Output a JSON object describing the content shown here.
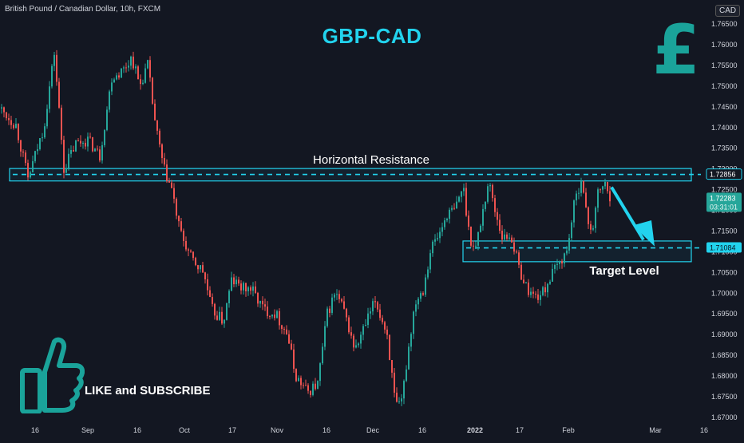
{
  "symbol_title": "British Pound / Canadian Dollar, 10h, FXCM",
  "main_title": "GBP-CAD",
  "currency_badge": "CAD",
  "logo_symbol": "£",
  "subscribe_text": "LIKE and SUBSCRIBE",
  "colors": {
    "background": "#131722",
    "up": "#26a69a",
    "down": "#ef5350",
    "zone": "#22d3ee",
    "title": "#22d3ee",
    "logo": "#1aa39a",
    "price_tag": "#26a69a"
  },
  "chart_data": {
    "type": "candlestick",
    "title": "GBP-CAD",
    "x_tick_labels": [
      "16",
      "Sep",
      "16",
      "Oct",
      "17",
      "Nov",
      "16",
      "Dec",
      "16",
      "2022",
      "17",
      "Feb",
      "Mar",
      "16"
    ],
    "y_tick_labels": [
      "1.67000",
      "1.67500",
      "1.68000",
      "1.68500",
      "1.69000",
      "1.69500",
      "1.70000",
      "1.70500",
      "1.71000",
      "1.71500",
      "1.72000",
      "1.72500",
      "1.73000",
      "1.73500",
      "1.74000",
      "1.74500",
      "1.75000",
      "1.75500",
      "1.76000",
      "1.76500"
    ],
    "ylim": [
      1.6695,
      1.768
    ],
    "grid": false,
    "price_path": [
      [
        0,
        1.7445
      ],
      [
        20,
        1.7405
      ],
      [
        35,
        1.7275
      ],
      [
        55,
        1.74
      ],
      [
        68,
        1.758
      ],
      [
        80,
        1.73
      ],
      [
        95,
        1.736
      ],
      [
        110,
        1.737
      ],
      [
        125,
        1.733
      ],
      [
        140,
        1.752
      ],
      [
        155,
        1.754
      ],
      [
        165,
        1.757
      ],
      [
        175,
        1.75
      ],
      [
        185,
        1.755
      ],
      [
        195,
        1.74
      ],
      [
        205,
        1.73
      ],
      [
        215,
        1.725
      ],
      [
        225,
        1.715
      ],
      [
        240,
        1.708
      ],
      [
        255,
        1.705
      ],
      [
        265,
        1.696
      ],
      [
        280,
        1.693
      ],
      [
        290,
        1.703
      ],
      [
        305,
        1.701
      ],
      [
        315,
        1.701
      ],
      [
        330,
        1.696
      ],
      [
        345,
        1.695
      ],
      [
        360,
        1.69
      ],
      [
        370,
        1.68
      ],
      [
        385,
        1.676
      ],
      [
        398,
        1.678
      ],
      [
        410,
        1.695
      ],
      [
        420,
        1.7
      ],
      [
        430,
        1.696
      ],
      [
        445,
        1.686
      ],
      [
        455,
        1.691
      ],
      [
        470,
        1.698
      ],
      [
        485,
        1.69
      ],
      [
        495,
        1.673
      ],
      [
        502,
        1.672
      ],
      [
        512,
        1.687
      ],
      [
        520,
        1.698
      ],
      [
        530,
        1.701
      ],
      [
        540,
        1.711
      ],
      [
        550,
        1.714
      ],
      [
        560,
        1.719
      ],
      [
        570,
        1.72
      ],
      [
        580,
        1.726
      ],
      [
        588,
        1.714
      ],
      [
        595,
        1.71
      ],
      [
        605,
        1.72
      ],
      [
        612,
        1.727
      ],
      [
        620,
        1.72
      ],
      [
        630,
        1.713
      ],
      [
        640,
        1.714
      ],
      [
        650,
        1.706
      ],
      [
        660,
        1.701
      ],
      [
        670,
        1.699
      ],
      [
        680,
        1.7
      ],
      [
        690,
        1.704
      ],
      [
        700,
        1.707
      ],
      [
        710,
        1.71
      ],
      [
        718,
        1.72
      ],
      [
        728,
        1.728
      ],
      [
        735,
        1.718
      ],
      [
        742,
        1.715
      ],
      [
        750,
        1.725
      ],
      [
        758,
        1.726
      ],
      [
        765,
        1.7228
      ]
    ],
    "zones": [
      {
        "label": "Horizontal Resistance",
        "price_low": 1.727,
        "price_high": 1.73,
        "line_price": 1.72856
      },
      {
        "label": "Target Level",
        "price_low": 1.7075,
        "price_high": 1.7125,
        "line_price": 1.71084
      }
    ],
    "price_tags": [
      {
        "price": 1.72856,
        "label": "1.72856",
        "kind": "outline"
      },
      {
        "price": 1.71084,
        "label": "1.71084",
        "kind": "filled-cyan"
      },
      {
        "price": 1.72283,
        "label": "1.72283",
        "sub": "03:31:01",
        "kind": "filled-green"
      }
    ]
  }
}
